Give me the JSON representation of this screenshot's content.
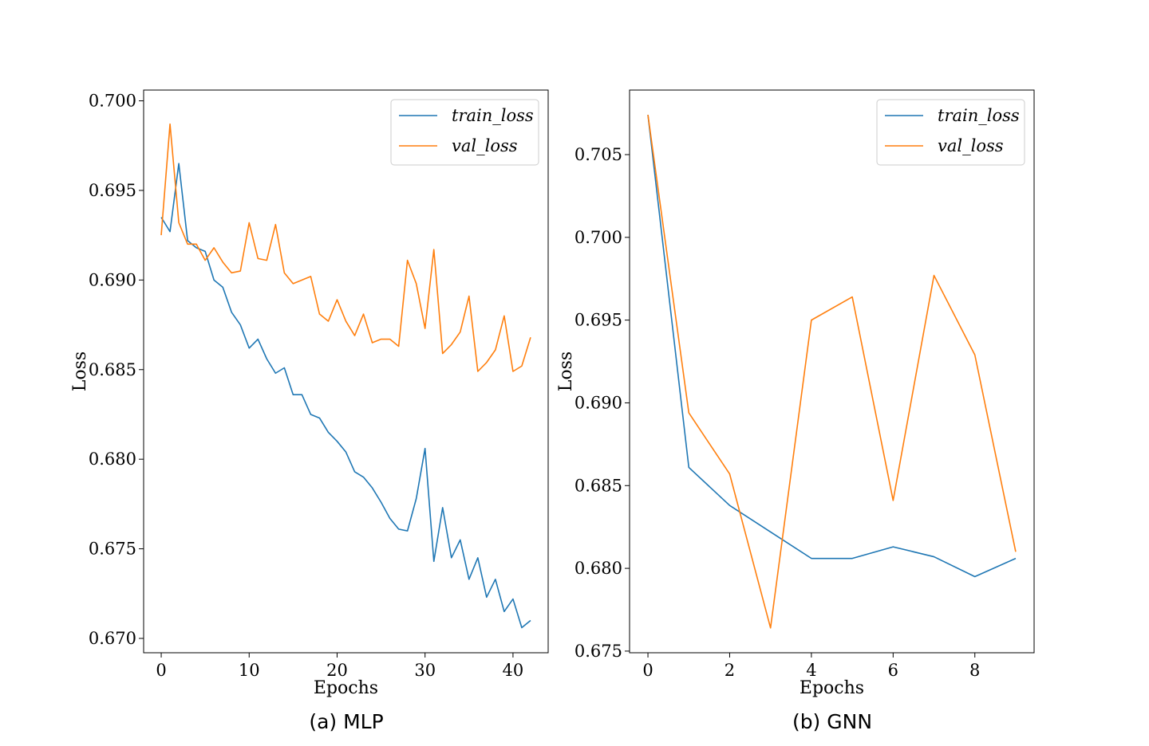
{
  "colors": {
    "train": "#1f77b4",
    "val": "#ff7f0e"
  },
  "chart_data": [
    {
      "type": "line",
      "caption": "(a) MLP",
      "xlabel": "Epochs",
      "ylabel": "Loss",
      "xlim": [
        -2,
        44
      ],
      "ylim": [
        0.6692,
        0.7006
      ],
      "xticks": [
        0,
        10,
        20,
        30,
        40
      ],
      "yticks": [
        0.67,
        0.675,
        0.68,
        0.685,
        0.69,
        0.695,
        0.7
      ],
      "ytick_labels": [
        "0.670",
        "0.675",
        "0.680",
        "0.685",
        "0.690",
        "0.695",
        "0.700"
      ],
      "legend": "top-right",
      "grid": false,
      "series": [
        {
          "name": "train_loss",
          "color": "#1f77b4",
          "x": [
            0,
            1,
            2,
            3,
            4,
            5,
            6,
            7,
            8,
            9,
            10,
            11,
            12,
            13,
            14,
            15,
            16,
            17,
            18,
            19,
            20,
            21,
            22,
            23,
            24,
            25,
            26,
            27,
            28,
            29,
            30,
            31,
            32,
            33,
            34,
            35,
            36,
            37,
            38,
            39,
            40,
            41,
            42
          ],
          "y": [
            0.6935,
            0.6927,
            0.6965,
            0.6922,
            0.6918,
            0.6916,
            0.69,
            0.6896,
            0.6882,
            0.6875,
            0.6862,
            0.6867,
            0.6856,
            0.6848,
            0.6851,
            0.6836,
            0.6836,
            0.6825,
            0.6823,
            0.6815,
            0.681,
            0.6804,
            0.6793,
            0.679,
            0.6784,
            0.6776,
            0.6767,
            0.6761,
            0.676,
            0.6778,
            0.6806,
            0.6743,
            0.6773,
            0.6745,
            0.6755,
            0.6733,
            0.6745,
            0.6723,
            0.6733,
            0.6715,
            0.6722,
            0.6706,
            0.671
          ]
        },
        {
          "name": "val_loss",
          "color": "#ff7f0e",
          "x": [
            0,
            1,
            2,
            3,
            4,
            5,
            6,
            7,
            8,
            9,
            10,
            11,
            12,
            13,
            14,
            15,
            16,
            17,
            18,
            19,
            20,
            21,
            22,
            23,
            24,
            25,
            26,
            27,
            28,
            29,
            30,
            31,
            32,
            33,
            34,
            35,
            36,
            37,
            38,
            39,
            40,
            41,
            42
          ],
          "y": [
            0.6925,
            0.6987,
            0.6932,
            0.692,
            0.692,
            0.6911,
            0.6918,
            0.691,
            0.6904,
            0.6905,
            0.6932,
            0.6912,
            0.6911,
            0.6931,
            0.6904,
            0.6898,
            0.69,
            0.6902,
            0.6881,
            0.6877,
            0.6889,
            0.6877,
            0.6869,
            0.6881,
            0.6865,
            0.6867,
            0.6867,
            0.6863,
            0.6911,
            0.6898,
            0.6873,
            0.6917,
            0.6859,
            0.6864,
            0.6871,
            0.6891,
            0.6849,
            0.6854,
            0.6861,
            0.688,
            0.6849,
            0.6852,
            0.6868
          ]
        }
      ]
    },
    {
      "type": "line",
      "caption": "(b) GNN",
      "xlabel": "Epochs",
      "ylabel": "Loss",
      "xlim": [
        -0.45,
        9.45
      ],
      "ylim": [
        0.6749,
        0.7089
      ],
      "xticks": [
        0,
        2,
        4,
        6,
        8
      ],
      "yticks": [
        0.675,
        0.68,
        0.685,
        0.69,
        0.695,
        0.7,
        0.705
      ],
      "ytick_labels": [
        "0.675",
        "0.680",
        "0.685",
        "0.690",
        "0.695",
        "0.700",
        "0.705"
      ],
      "legend": "top-right",
      "grid": false,
      "series": [
        {
          "name": "train_loss",
          "color": "#1f77b4",
          "x": [
            0,
            1,
            2,
            3,
            4,
            5,
            6,
            7,
            8,
            9
          ],
          "y": [
            0.7074,
            0.6861,
            0.6838,
            0.6822,
            0.6806,
            0.6806,
            0.6813,
            0.6807,
            0.6795,
            0.6806
          ]
        },
        {
          "name": "val_loss",
          "color": "#ff7f0e",
          "x": [
            0,
            1,
            2,
            3,
            4,
            5,
            6,
            7,
            8,
            9
          ],
          "y": [
            0.7074,
            0.6894,
            0.6857,
            0.6764,
            0.695,
            0.6964,
            0.6841,
            0.6977,
            0.6929,
            0.681
          ]
        }
      ]
    }
  ]
}
